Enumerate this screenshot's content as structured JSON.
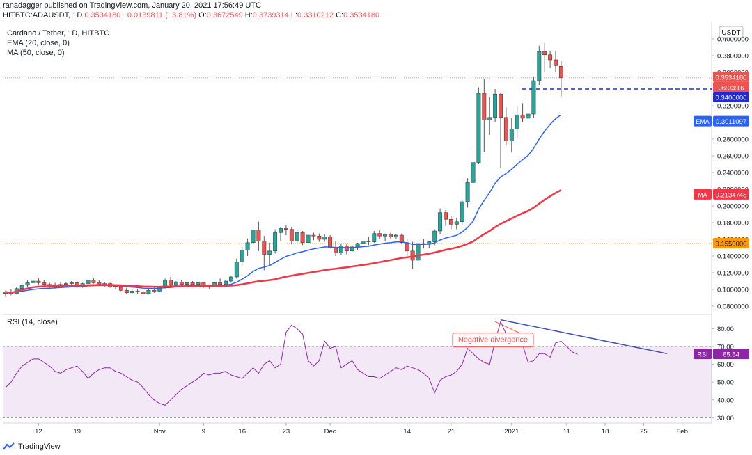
{
  "header": {
    "publisher": "ranadagger published on TradingView.com, January 20, 2021 17:56:49 UTC",
    "symbol": "HITBTC:ADAUSDT, 1D",
    "last": "0.3534180",
    "change": "−0.0139811 (−3.81%)",
    "o_label": "O:",
    "o": "0.3672549",
    "h_label": "H:",
    "h": "0.3739314",
    "l_label": "L:",
    "l": "0.3310212",
    "c_label": "C:",
    "c": "0.3534180"
  },
  "legend": {
    "title": "Cardano / Tether, 1D, HITBTC",
    "ema": "EMA (20, close, 0)",
    "ma": "MA (50, close, 0)",
    "rsi": "RSI (14, close)"
  },
  "footer": {
    "brand": "TradingView"
  },
  "colors": {
    "up": "#26a69a",
    "down": "#ef5350",
    "ema": "#2962ff",
    "ma": "#f23645",
    "rsi": "#8e24aa",
    "trend": "#3f51b5"
  },
  "chart_data": [
    {
      "type": "candlestick",
      "title": "Cardano / Tether, 1D, HITBTC",
      "currency": "USDT",
      "ylim": [
        0.07,
        0.42
      ],
      "y_ticks": [
        "0.0800000",
        "0.1000000",
        "0.1200000",
        "0.1400000",
        "0.1600000",
        "0.1800000",
        "0.2000000",
        "0.2200000",
        "0.2400000",
        "0.2600000",
        "0.2800000",
        "0.3000000",
        "0.3200000",
        "0.3600000",
        "0.3800000",
        "0.4000000"
      ],
      "x_ticks": [
        "12",
        "19",
        "Nov",
        "9",
        "16",
        "23",
        "Dec",
        "14",
        "21",
        "2021",
        "11",
        "18",
        "25",
        "Feb"
      ],
      "candles": [
        {
          "o": 0.095,
          "h": 0.099,
          "l": 0.091,
          "c": 0.097
        },
        {
          "o": 0.097,
          "h": 0.1,
          "l": 0.093,
          "c": 0.095
        },
        {
          "o": 0.095,
          "h": 0.103,
          "l": 0.094,
          "c": 0.101
        },
        {
          "o": 0.101,
          "h": 0.107,
          "l": 0.099,
          "c": 0.105
        },
        {
          "o": 0.105,
          "h": 0.111,
          "l": 0.103,
          "c": 0.108
        },
        {
          "o": 0.108,
          "h": 0.112,
          "l": 0.105,
          "c": 0.11
        },
        {
          "o": 0.11,
          "h": 0.114,
          "l": 0.106,
          "c": 0.108
        },
        {
          "o": 0.108,
          "h": 0.111,
          "l": 0.104,
          "c": 0.106
        },
        {
          "o": 0.106,
          "h": 0.108,
          "l": 0.102,
          "c": 0.104
        },
        {
          "o": 0.104,
          "h": 0.108,
          "l": 0.101,
          "c": 0.105
        },
        {
          "o": 0.105,
          "h": 0.109,
          "l": 0.102,
          "c": 0.106
        },
        {
          "o": 0.106,
          "h": 0.109,
          "l": 0.103,
          "c": 0.107
        },
        {
          "o": 0.107,
          "h": 0.11,
          "l": 0.104,
          "c": 0.108
        },
        {
          "o": 0.108,
          "h": 0.11,
          "l": 0.102,
          "c": 0.103
        },
        {
          "o": 0.103,
          "h": 0.108,
          "l": 0.102,
          "c": 0.107
        },
        {
          "o": 0.107,
          "h": 0.113,
          "l": 0.105,
          "c": 0.111
        },
        {
          "o": 0.111,
          "h": 0.114,
          "l": 0.107,
          "c": 0.108
        },
        {
          "o": 0.108,
          "h": 0.111,
          "l": 0.104,
          "c": 0.106
        },
        {
          "o": 0.106,
          "h": 0.109,
          "l": 0.103,
          "c": 0.107
        },
        {
          "o": 0.107,
          "h": 0.108,
          "l": 0.102,
          "c": 0.103
        },
        {
          "o": 0.103,
          "h": 0.106,
          "l": 0.1,
          "c": 0.104
        },
        {
          "o": 0.104,
          "h": 0.106,
          "l": 0.098,
          "c": 0.099
        },
        {
          "o": 0.099,
          "h": 0.102,
          "l": 0.094,
          "c": 0.096
        },
        {
          "o": 0.096,
          "h": 0.1,
          "l": 0.094,
          "c": 0.098
        },
        {
          "o": 0.098,
          "h": 0.101,
          "l": 0.095,
          "c": 0.097
        },
        {
          "o": 0.097,
          "h": 0.099,
          "l": 0.093,
          "c": 0.095
        },
        {
          "o": 0.095,
          "h": 0.1,
          "l": 0.094,
          "c": 0.099
        },
        {
          "o": 0.099,
          "h": 0.104,
          "l": 0.096,
          "c": 0.098
        },
        {
          "o": 0.098,
          "h": 0.104,
          "l": 0.097,
          "c": 0.103
        },
        {
          "o": 0.103,
          "h": 0.113,
          "l": 0.101,
          "c": 0.111
        },
        {
          "o": 0.111,
          "h": 0.115,
          "l": 0.103,
          "c": 0.105
        },
        {
          "o": 0.105,
          "h": 0.11,
          "l": 0.103,
          "c": 0.109
        },
        {
          "o": 0.109,
          "h": 0.111,
          "l": 0.104,
          "c": 0.106
        },
        {
          "o": 0.106,
          "h": 0.109,
          "l": 0.104,
          "c": 0.108
        },
        {
          "o": 0.108,
          "h": 0.11,
          "l": 0.104,
          "c": 0.106
        },
        {
          "o": 0.106,
          "h": 0.109,
          "l": 0.104,
          "c": 0.108
        },
        {
          "o": 0.108,
          "h": 0.109,
          "l": 0.102,
          "c": 0.103
        },
        {
          "o": 0.103,
          "h": 0.106,
          "l": 0.101,
          "c": 0.104
        },
        {
          "o": 0.104,
          "h": 0.109,
          "l": 0.103,
          "c": 0.108
        },
        {
          "o": 0.108,
          "h": 0.113,
          "l": 0.104,
          "c": 0.106
        },
        {
          "o": 0.106,
          "h": 0.111,
          "l": 0.105,
          "c": 0.11
        },
        {
          "o": 0.11,
          "h": 0.116,
          "l": 0.108,
          "c": 0.115
        },
        {
          "o": 0.115,
          "h": 0.137,
          "l": 0.113,
          "c": 0.133
        },
        {
          "o": 0.133,
          "h": 0.151,
          "l": 0.129,
          "c": 0.147
        },
        {
          "o": 0.147,
          "h": 0.161,
          "l": 0.14,
          "c": 0.156
        },
        {
          "o": 0.156,
          "h": 0.176,
          "l": 0.151,
          "c": 0.171
        },
        {
          "o": 0.171,
          "h": 0.181,
          "l": 0.146,
          "c": 0.158
        },
        {
          "o": 0.158,
          "h": 0.164,
          "l": 0.123,
          "c": 0.142
        },
        {
          "o": 0.142,
          "h": 0.156,
          "l": 0.128,
          "c": 0.146
        },
        {
          "o": 0.146,
          "h": 0.172,
          "l": 0.143,
          "c": 0.168
        },
        {
          "o": 0.168,
          "h": 0.175,
          "l": 0.158,
          "c": 0.173
        },
        {
          "o": 0.173,
          "h": 0.177,
          "l": 0.165,
          "c": 0.172
        },
        {
          "o": 0.172,
          "h": 0.175,
          "l": 0.154,
          "c": 0.158
        },
        {
          "o": 0.158,
          "h": 0.172,
          "l": 0.156,
          "c": 0.168
        },
        {
          "o": 0.168,
          "h": 0.17,
          "l": 0.153,
          "c": 0.156
        },
        {
          "o": 0.156,
          "h": 0.168,
          "l": 0.155,
          "c": 0.165
        },
        {
          "o": 0.165,
          "h": 0.168,
          "l": 0.159,
          "c": 0.164
        },
        {
          "o": 0.164,
          "h": 0.167,
          "l": 0.157,
          "c": 0.16
        },
        {
          "o": 0.16,
          "h": 0.166,
          "l": 0.157,
          "c": 0.163
        },
        {
          "o": 0.163,
          "h": 0.165,
          "l": 0.149,
          "c": 0.15
        },
        {
          "o": 0.15,
          "h": 0.158,
          "l": 0.14,
          "c": 0.144
        },
        {
          "o": 0.144,
          "h": 0.155,
          "l": 0.141,
          "c": 0.152
        },
        {
          "o": 0.152,
          "h": 0.154,
          "l": 0.142,
          "c": 0.146
        },
        {
          "o": 0.146,
          "h": 0.153,
          "l": 0.145,
          "c": 0.151
        },
        {
          "o": 0.151,
          "h": 0.156,
          "l": 0.147,
          "c": 0.155
        },
        {
          "o": 0.155,
          "h": 0.159,
          "l": 0.151,
          "c": 0.158
        },
        {
          "o": 0.158,
          "h": 0.163,
          "l": 0.153,
          "c": 0.157
        },
        {
          "o": 0.157,
          "h": 0.17,
          "l": 0.156,
          "c": 0.167
        },
        {
          "o": 0.167,
          "h": 0.171,
          "l": 0.16,
          "c": 0.164
        },
        {
          "o": 0.164,
          "h": 0.167,
          "l": 0.158,
          "c": 0.166
        },
        {
          "o": 0.166,
          "h": 0.168,
          "l": 0.16,
          "c": 0.163
        },
        {
          "o": 0.163,
          "h": 0.166,
          "l": 0.16,
          "c": 0.165
        },
        {
          "o": 0.165,
          "h": 0.167,
          "l": 0.154,
          "c": 0.156
        },
        {
          "o": 0.156,
          "h": 0.16,
          "l": 0.14,
          "c": 0.146
        },
        {
          "o": 0.146,
          "h": 0.157,
          "l": 0.125,
          "c": 0.135
        },
        {
          "o": 0.135,
          "h": 0.158,
          "l": 0.131,
          "c": 0.155
        },
        {
          "o": 0.155,
          "h": 0.16,
          "l": 0.149,
          "c": 0.154
        },
        {
          "o": 0.154,
          "h": 0.158,
          "l": 0.15,
          "c": 0.157
        },
        {
          "o": 0.157,
          "h": 0.172,
          "l": 0.153,
          "c": 0.17
        },
        {
          "o": 0.17,
          "h": 0.197,
          "l": 0.166,
          "c": 0.192
        },
        {
          "o": 0.192,
          "h": 0.195,
          "l": 0.176,
          "c": 0.184
        },
        {
          "o": 0.184,
          "h": 0.188,
          "l": 0.172,
          "c": 0.178
        },
        {
          "o": 0.178,
          "h": 0.186,
          "l": 0.172,
          "c": 0.181
        },
        {
          "o": 0.181,
          "h": 0.208,
          "l": 0.177,
          "c": 0.205
        },
        {
          "o": 0.205,
          "h": 0.233,
          "l": 0.198,
          "c": 0.228
        },
        {
          "o": 0.228,
          "h": 0.268,
          "l": 0.226,
          "c": 0.252
        },
        {
          "o": 0.252,
          "h": 0.342,
          "l": 0.25,
          "c": 0.335
        },
        {
          "o": 0.335,
          "h": 0.352,
          "l": 0.265,
          "c": 0.303
        },
        {
          "o": 0.303,
          "h": 0.33,
          "l": 0.285,
          "c": 0.306
        },
        {
          "o": 0.306,
          "h": 0.34,
          "l": 0.3,
          "c": 0.334
        },
        {
          "o": 0.334,
          "h": 0.336,
          "l": 0.245,
          "c": 0.306
        },
        {
          "o": 0.306,
          "h": 0.318,
          "l": 0.272,
          "c": 0.278
        },
        {
          "o": 0.278,
          "h": 0.305,
          "l": 0.264,
          "c": 0.292
        },
        {
          "o": 0.292,
          "h": 0.32,
          "l": 0.281,
          "c": 0.309
        },
        {
          "o": 0.309,
          "h": 0.323,
          "l": 0.3,
          "c": 0.305
        },
        {
          "o": 0.305,
          "h": 0.33,
          "l": 0.291,
          "c": 0.31
        },
        {
          "o": 0.31,
          "h": 0.355,
          "l": 0.305,
          "c": 0.35
        },
        {
          "o": 0.35,
          "h": 0.392,
          "l": 0.345,
          "c": 0.385
        },
        {
          "o": 0.385,
          "h": 0.395,
          "l": 0.36,
          "c": 0.381
        },
        {
          "o": 0.381,
          "h": 0.386,
          "l": 0.365,
          "c": 0.375
        },
        {
          "o": 0.375,
          "h": 0.385,
          "l": 0.36,
          "c": 0.368
        },
        {
          "o": 0.3672549,
          "h": 0.3739314,
          "l": 0.3310212,
          "c": 0.353418
        }
      ],
      "levels": [
        {
          "value": 0.34,
          "label": "0.3400000"
        },
        {
          "value": 0.155,
          "label": "0.1550000"
        }
      ],
      "price_labels": {
        "last": {
          "value": 0.353418,
          "label": "0.3534180",
          "countdown": "06:03:16"
        },
        "ema": {
          "value": 0.3011097,
          "tag": "EMA",
          "label": "0.3011097"
        },
        "ma": {
          "value": 0.2134748,
          "tag": "MA",
          "label": "0.2134748"
        }
      }
    },
    {
      "type": "line",
      "title": "RSI (14, close)",
      "ylim": [
        27,
        88
      ],
      "y_ticks": [
        "30.00",
        "40.00",
        "50.00",
        "60.00",
        "70.00",
        "80.00"
      ],
      "band": [
        30,
        70
      ],
      "values": [
        47,
        50,
        55,
        59,
        61,
        63,
        63,
        61,
        59,
        56,
        55,
        57,
        58,
        59,
        56,
        52,
        55,
        57,
        58,
        58,
        56,
        55,
        53,
        51,
        50,
        47,
        43,
        40,
        38,
        37,
        40,
        43,
        46,
        48,
        50,
        52,
        55,
        54,
        55,
        55,
        56,
        54,
        53,
        52,
        55,
        58,
        55,
        60,
        62,
        58,
        60,
        78,
        82,
        80,
        77,
        62,
        59,
        62,
        73,
        69,
        70,
        58,
        60,
        62,
        57,
        55,
        53,
        53,
        52,
        54,
        56,
        58,
        57,
        59,
        58,
        57,
        55,
        52,
        44,
        51,
        53,
        54,
        56,
        60,
        69,
        66,
        63,
        61,
        60,
        73,
        84,
        77,
        74,
        75,
        71,
        61,
        62,
        66,
        66,
        64,
        72,
        73,
        70,
        67,
        65.64
      ],
      "last_label": {
        "tag": "RSI",
        "label": "65.64"
      },
      "annotation": "Negative divergence"
    }
  ]
}
